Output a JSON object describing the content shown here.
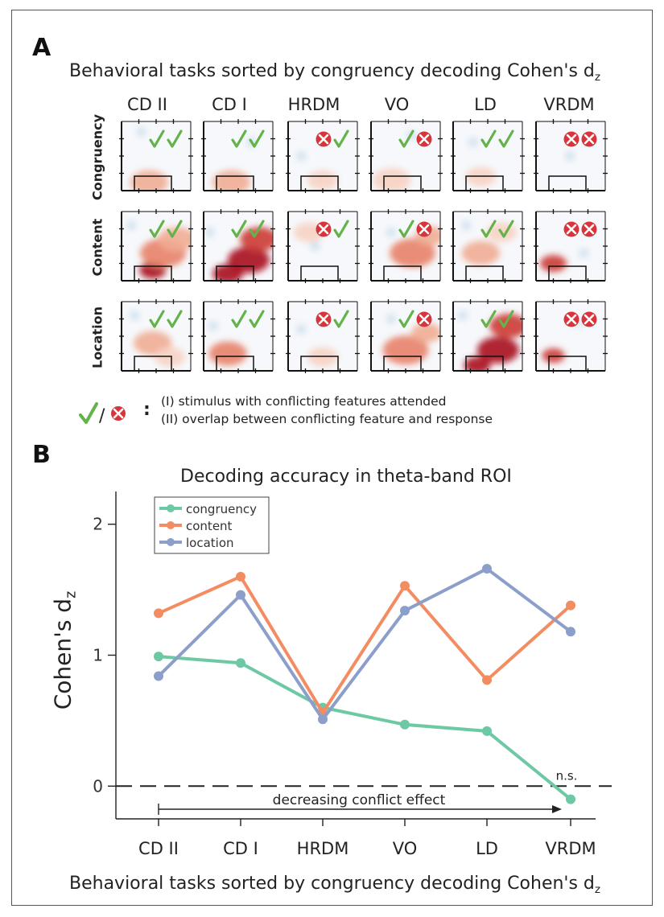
{
  "panel_a": {
    "letter": "A",
    "title": "Behavioral tasks sorted by congruency decoding Cohen's d",
    "title_sub": "z",
    "columns": [
      "CD II",
      "CD I",
      "HRDM",
      "VO",
      "LD",
      "VRDM"
    ],
    "rows": [
      "Congruency",
      "Content",
      "Location"
    ],
    "criteria": [
      {
        "task": "CD II",
        "attended": true,
        "overlap": true
      },
      {
        "task": "CD I",
        "attended": true,
        "overlap": true
      },
      {
        "task": "HRDM",
        "attended": false,
        "overlap": true
      },
      {
        "task": "VO",
        "attended": true,
        "overlap": false
      },
      {
        "task": "LD",
        "attended": true,
        "overlap": true
      },
      {
        "task": "VRDM",
        "attended": false,
        "overlap": false
      }
    ],
    "legend_symbol_sep": "/",
    "legend_colon": ":",
    "legend_lines": [
      "(I) stimulus with conflicting features attended",
      "(II) overlap between conflicting feature and response"
    ],
    "colors": {
      "check": "#63b34a",
      "cross": "#d8343c",
      "heat_high": "#a8121e",
      "heat_low": "#cfe0ee"
    }
  },
  "panel_b": {
    "letter": "B",
    "bottom_label": "Behavioral tasks sorted by congruency decoding Cohen's d",
    "bottom_label_sub": "z",
    "annotation_ns": "n.s.",
    "arrow_text": "decreasing conflict effect"
  },
  "chart_data": {
    "type": "line",
    "title": "Decoding accuracy in theta-band ROI",
    "xlabel": "",
    "ylabel": "Cohen's d",
    "ylabel_sub": "z",
    "categories": [
      "CD II",
      "CD I",
      "HRDM",
      "VO",
      "LD",
      "VRDM"
    ],
    "ylim": [
      -0.25,
      2.25
    ],
    "yticks": [
      0,
      1,
      2
    ],
    "reference_line": 0,
    "legend_position": "top-left",
    "grid": false,
    "series": [
      {
        "name": "congruency",
        "color": "#6cc9a4",
        "values": [
          0.99,
          0.94,
          0.6,
          0.47,
          0.42,
          -0.1
        ]
      },
      {
        "name": "content",
        "color": "#f48c62",
        "values": [
          1.32,
          1.6,
          0.56,
          1.53,
          0.81,
          1.38
        ]
      },
      {
        "name": "location",
        "color": "#8c9fcb",
        "values": [
          0.84,
          1.46,
          0.51,
          1.34,
          1.66,
          1.18
        ]
      }
    ]
  }
}
